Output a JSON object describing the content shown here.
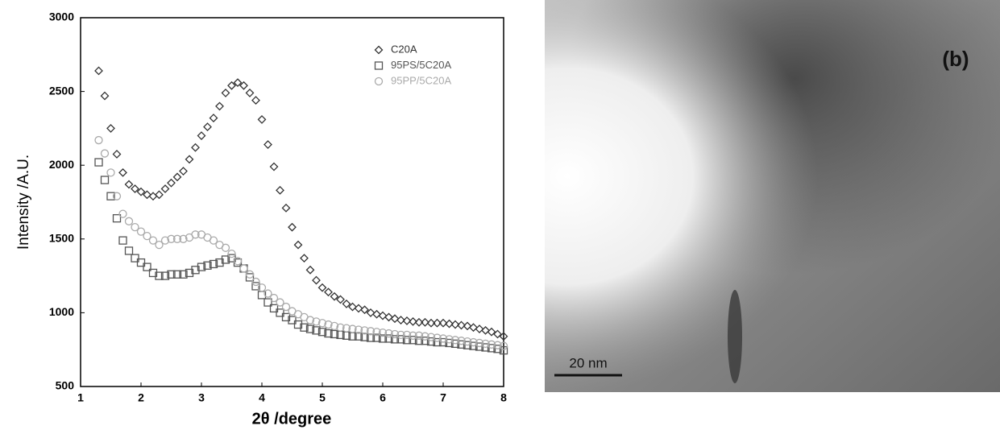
{
  "chart_data": {
    "type": "scatter",
    "xlabel": "2θ /degree",
    "ylabel": "Intensity /A.U.",
    "xlim": [
      1,
      8
    ],
    "xticks": [
      1,
      2,
      3,
      4,
      5,
      6,
      7,
      8
    ],
    "ylim": [
      500,
      3000
    ],
    "yticks": [
      500,
      1000,
      1500,
      2000,
      2500,
      3000
    ],
    "grid": false,
    "legend": "top-right",
    "x": [
      1.3,
      1.4,
      1.5,
      1.6,
      1.7,
      1.8,
      1.9,
      2.0,
      2.1,
      2.2,
      2.3,
      2.4,
      2.5,
      2.6,
      2.7,
      2.8,
      2.9,
      3.0,
      3.1,
      3.2,
      3.3,
      3.4,
      3.5,
      3.6,
      3.7,
      3.8,
      3.9,
      4.0,
      4.1,
      4.2,
      4.3,
      4.4,
      4.5,
      4.6,
      4.7,
      4.8,
      4.9,
      5.0,
      5.1,
      5.2,
      5.3,
      5.4,
      5.5,
      5.6,
      5.7,
      5.8,
      5.9,
      6.0,
      6.1,
      6.2,
      6.3,
      6.4,
      6.5,
      6.6,
      6.7,
      6.8,
      6.9,
      7.0,
      7.1,
      7.2,
      7.3,
      7.4,
      7.5,
      7.6,
      7.7,
      7.8,
      7.9,
      8.0
    ],
    "series": [
      {
        "name": "C20A",
        "color": "#333333",
        "marker": "diamond",
        "values": [
          2640,
          2470,
          2250,
          2075,
          1950,
          1870,
          1840,
          1820,
          1800,
          1790,
          1800,
          1840,
          1880,
          1920,
          1960,
          2040,
          2120,
          2200,
          2260,
          2320,
          2400,
          2490,
          2540,
          2560,
          2540,
          2490,
          2440,
          2310,
          2140,
          1990,
          1830,
          1710,
          1580,
          1460,
          1370,
          1290,
          1220,
          1170,
          1140,
          1110,
          1090,
          1060,
          1040,
          1030,
          1020,
          1000,
          990,
          980,
          970,
          960,
          950,
          945,
          940,
          935,
          935,
          930,
          930,
          930,
          925,
          920,
          915,
          910,
          900,
          890,
          880,
          870,
          855,
          840
        ]
      },
      {
        "name": "95PS/5C20A",
        "color": "#555555",
        "marker": "square",
        "values": [
          2020,
          1900,
          1790,
          1640,
          1490,
          1420,
          1370,
          1340,
          1310,
          1270,
          1250,
          1250,
          1260,
          1260,
          1260,
          1270,
          1290,
          1310,
          1320,
          1330,
          1340,
          1360,
          1370,
          1340,
          1300,
          1240,
          1180,
          1120,
          1070,
          1030,
          1000,
          970,
          950,
          920,
          900,
          890,
          880,
          870,
          860,
          855,
          850,
          845,
          840,
          840,
          835,
          830,
          830,
          825,
          825,
          820,
          820,
          815,
          815,
          810,
          810,
          805,
          800,
          800,
          795,
          790,
          785,
          780,
          775,
          770,
          765,
          760,
          755,
          745
        ]
      },
      {
        "name": "95PP/5C20A",
        "color": "#aaaaaa",
        "marker": "circle",
        "values": [
          2170,
          2080,
          1950,
          1790,
          1670,
          1620,
          1580,
          1550,
          1520,
          1490,
          1460,
          1490,
          1500,
          1500,
          1500,
          1510,
          1530,
          1530,
          1510,
          1490,
          1460,
          1440,
          1400,
          1350,
          1300,
          1260,
          1210,
          1170,
          1130,
          1100,
          1070,
          1040,
          1010,
          990,
          970,
          950,
          940,
          930,
          920,
          910,
          900,
          895,
          890,
          885,
          880,
          875,
          870,
          865,
          860,
          855,
          850,
          850,
          845,
          845,
          840,
          835,
          830,
          825,
          820,
          815,
          810,
          805,
          800,
          795,
          790,
          785,
          780,
          775
        ]
      }
    ]
  },
  "image": {
    "label": "(b)",
    "scale_bar": "20 nm"
  }
}
